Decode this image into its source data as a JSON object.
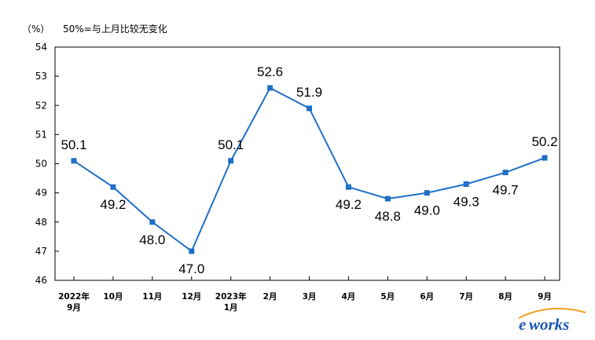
{
  "chart_data": {
    "type": "line",
    "unit_label": "（%）",
    "note": "50%=与上月比较无变化",
    "categories": [
      [
        "2022年",
        "9月"
      ],
      [
        "10月"
      ],
      [
        "11月"
      ],
      [
        "12月"
      ],
      [
        "2023年",
        "1月"
      ],
      [
        "2月"
      ],
      [
        "3月"
      ],
      [
        "4月"
      ],
      [
        "5月"
      ],
      [
        "6月"
      ],
      [
        "7月"
      ],
      [
        "8月"
      ],
      [
        "9月"
      ]
    ],
    "values": [
      50.1,
      49.2,
      48.0,
      47.0,
      50.1,
      52.6,
      51.9,
      49.2,
      48.8,
      49.0,
      49.3,
      49.7,
      50.2
    ],
    "data_labels": [
      "50.1",
      "49.2",
      "48.0",
      "47.0",
      "50.1",
      "52.6",
      "51.9",
      "49.2",
      "48.8",
      "49.0",
      "49.3",
      "49.7",
      "50.2"
    ],
    "yticks": [
      "46",
      "47",
      "48",
      "49",
      "50",
      "51",
      "52",
      "53",
      "54"
    ],
    "ylim": [
      46,
      54
    ],
    "grid": false,
    "line_color": "#1f6fc5",
    "frame_color": "#000000"
  },
  "watermark": {
    "prefix": "e",
    "suffix": "works"
  }
}
